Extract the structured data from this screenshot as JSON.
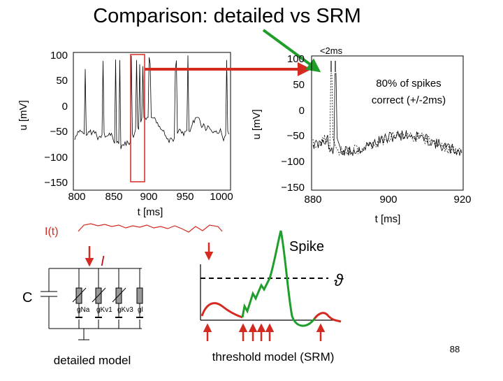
{
  "title": "Comparison: detailed vs SRM",
  "left_plot": {
    "ylabel": "u [mV]",
    "xlabel": "t [ms]",
    "yticks": [
      "100",
      "50",
      "0",
      "−50",
      "−100",
      "−150"
    ],
    "xticks": [
      "800",
      "850",
      "900",
      "950",
      "1000"
    ]
  },
  "right_plot": {
    "ylabel": "u [mV]",
    "xlabel": "t [ms]",
    "yticks": [
      "100",
      "50",
      "0",
      "−50",
      "−100",
      "−150"
    ],
    "xticks": [
      "880",
      "900",
      "920"
    ]
  },
  "annotations": {
    "timing": "<2ms",
    "accuracy_line1": "80% of spikes",
    "accuracy_line2": "correct (+/-2ms)",
    "input_label": "I(t)",
    "current_symbol": "I",
    "capacitor": "C",
    "spike": "Spike",
    "threshold_symbol": "ϑ"
  },
  "conductances": [
    "gNa",
    "gKv1",
    "gKv3",
    "gl"
  ],
  "captions": {
    "detailed": "detailed model",
    "srm": "threshold model (SRM)"
  },
  "slide_number": "88",
  "colors": {
    "red": "#d42a20",
    "green": "#1f9e2c",
    "dark_red": "#c0141a"
  }
}
